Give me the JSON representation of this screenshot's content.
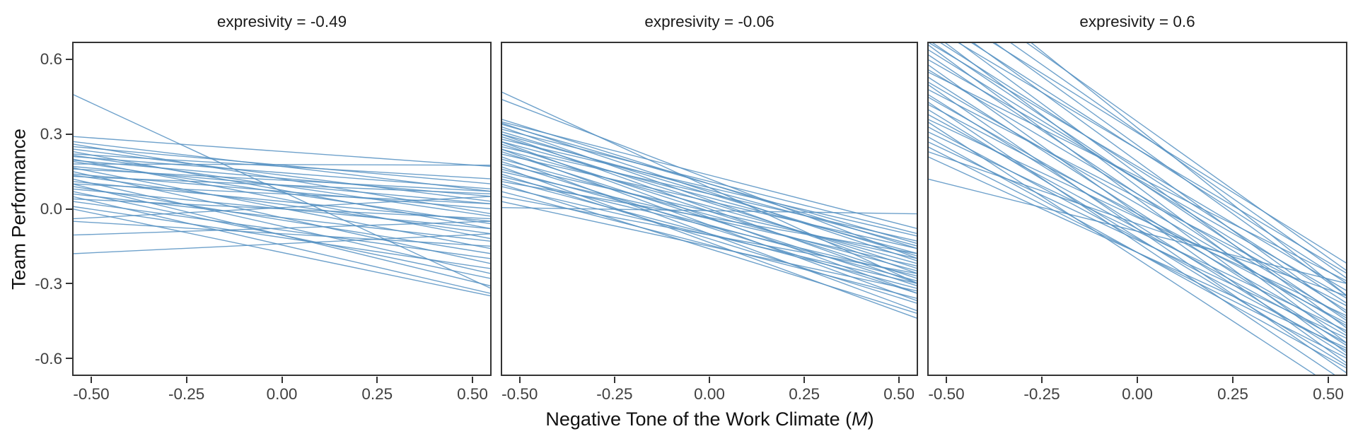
{
  "chart_data": {
    "type": "line",
    "title": "",
    "ylabel": "Team Performance",
    "xlabel_prefix": "Negative Tone of the Work Climate (",
    "xlabel_italic": "M",
    "xlabel_suffix": ")",
    "x_domain": [
      -0.55,
      0.55
    ],
    "y_domain": [
      -0.67,
      0.67
    ],
    "x_ticks": {
      "values": [
        -0.5,
        -0.25,
        0.0,
        0.25,
        0.5
      ],
      "labels": [
        "-0.50",
        "-0.25",
        "0.00",
        "0.25",
        "0.50"
      ]
    },
    "y_ticks": {
      "values": [
        0.6,
        0.3,
        0.0,
        -0.3,
        -0.6
      ],
      "labels": [
        "0.6",
        "0.3",
        "0.0",
        "-0.3",
        "-0.6"
      ]
    },
    "grid": false,
    "legend": "none",
    "style": {
      "line_color": "#5590c2",
      "line_opacity": 0.85,
      "line_width": 1.4,
      "panel_border_color": "#333333",
      "title_text_color": "#111111",
      "tick_text_color": "#404040"
    },
    "facets": [
      {
        "title": "expresivity = -0.49",
        "moderator_value": -0.49,
        "lines": [
          [
            0.46,
            -0.32
          ],
          [
            0.29,
            0.17
          ],
          [
            0.27,
            0.07
          ],
          [
            0.26,
            -0.02
          ],
          [
            0.25,
            0.1
          ],
          [
            0.24,
            0.03
          ],
          [
            0.23,
            -0.08
          ],
          [
            0.22,
            0.12
          ],
          [
            0.215,
            -0.03
          ],
          [
            0.21,
            0.08
          ],
          [
            0.2,
            -0.12
          ],
          [
            0.195,
            0.05
          ],
          [
            0.19,
            -0.06
          ],
          [
            0.18,
            0.175
          ],
          [
            0.17,
            0.02
          ],
          [
            0.165,
            -0.16
          ],
          [
            0.16,
            0.07
          ],
          [
            0.15,
            -0.22
          ],
          [
            0.14,
            0.0
          ],
          [
            0.135,
            -0.1
          ],
          [
            0.13,
            0.06
          ],
          [
            0.12,
            -0.26
          ],
          [
            0.11,
            -0.05
          ],
          [
            0.1,
            -0.31
          ],
          [
            0.1,
            0.02
          ],
          [
            0.09,
            -0.18
          ],
          [
            0.08,
            -0.08
          ],
          [
            0.07,
            -0.28
          ],
          [
            0.06,
            -0.13
          ],
          [
            0.05,
            -0.34
          ],
          [
            0.04,
            -0.04
          ],
          [
            0.03,
            -0.2
          ],
          [
            0.01,
            -0.24
          ],
          [
            0.0,
            -0.35
          ],
          [
            -0.04,
            0.05
          ],
          [
            -0.05,
            -0.15
          ],
          [
            -0.105,
            -0.05
          ],
          [
            -0.18,
            -0.1
          ]
        ]
      },
      {
        "title": "expresivity = -0.06",
        "moderator_value": -0.06,
        "lines": [
          [
            0.47,
            -0.3
          ],
          [
            0.44,
            -0.2
          ],
          [
            0.36,
            -0.16
          ],
          [
            0.35,
            -0.08
          ],
          [
            0.345,
            -0.21
          ],
          [
            0.34,
            -0.14
          ],
          [
            0.33,
            -0.26
          ],
          [
            0.32,
            -0.1
          ],
          [
            0.31,
            -0.19
          ],
          [
            0.3,
            -0.3
          ],
          [
            0.3,
            -0.15
          ],
          [
            0.29,
            -0.24
          ],
          [
            0.28,
            -0.11
          ],
          [
            0.27,
            -0.34
          ],
          [
            0.27,
            -0.18
          ],
          [
            0.26,
            -0.28
          ],
          [
            0.25,
            -0.13
          ],
          [
            0.24,
            -0.37
          ],
          [
            0.24,
            -0.22
          ],
          [
            0.23,
            -0.31
          ],
          [
            0.22,
            -0.16
          ],
          [
            0.21,
            -0.41
          ],
          [
            0.2,
            -0.25
          ],
          [
            0.19,
            -0.34
          ],
          [
            0.18,
            -0.2
          ],
          [
            0.17,
            -0.44
          ],
          [
            0.16,
            -0.29
          ],
          [
            0.15,
            -0.23
          ],
          [
            0.14,
            -0.38
          ],
          [
            0.13,
            -0.27
          ],
          [
            0.12,
            -0.32
          ],
          [
            0.11,
            -0.18
          ],
          [
            0.1,
            -0.42
          ],
          [
            0.09,
            -0.3
          ],
          [
            0.07,
            -0.36
          ],
          [
            0.05,
            -0.26
          ],
          [
            0.03,
            -0.33
          ],
          [
            0.005,
            -0.02
          ]
        ]
      },
      {
        "title": "expresivity = 0.6",
        "moderator_value": 0.6,
        "lines": [
          [
            1.0,
            -0.35
          ],
          [
            0.95,
            -0.25
          ],
          [
            0.9,
            -0.28
          ],
          [
            0.86,
            -0.35
          ],
          [
            0.83,
            -0.22
          ],
          [
            0.8,
            -0.42
          ],
          [
            0.78,
            -0.3
          ],
          [
            0.76,
            -0.48
          ],
          [
            0.74,
            -0.26
          ],
          [
            0.72,
            -0.54
          ],
          [
            0.7,
            -0.38
          ],
          [
            0.68,
            -0.45
          ],
          [
            0.67,
            -0.33
          ],
          [
            0.66,
            -0.58
          ],
          [
            0.64,
            -0.41
          ],
          [
            0.62,
            -0.5
          ],
          [
            0.6,
            -0.36
          ],
          [
            0.58,
            -0.62
          ],
          [
            0.56,
            -0.44
          ],
          [
            0.55,
            -0.29
          ],
          [
            0.53,
            -0.55
          ],
          [
            0.51,
            -0.47
          ],
          [
            0.5,
            -0.66
          ],
          [
            0.48,
            -0.39
          ],
          [
            0.46,
            -0.59
          ],
          [
            0.45,
            -0.51
          ],
          [
            0.43,
            -0.7
          ],
          [
            0.42,
            -0.46
          ],
          [
            0.4,
            -0.63
          ],
          [
            0.38,
            -0.54
          ],
          [
            0.36,
            -0.43
          ],
          [
            0.35,
            -0.75
          ],
          [
            0.33,
            -0.57
          ],
          [
            0.31,
            -0.49
          ],
          [
            0.29,
            -0.64
          ],
          [
            0.27,
            -0.52
          ],
          [
            0.25,
            -0.6
          ],
          [
            0.23,
            -0.35
          ],
          [
            0.21,
            -0.56
          ],
          [
            0.12,
            -0.3
          ]
        ]
      }
    ]
  }
}
